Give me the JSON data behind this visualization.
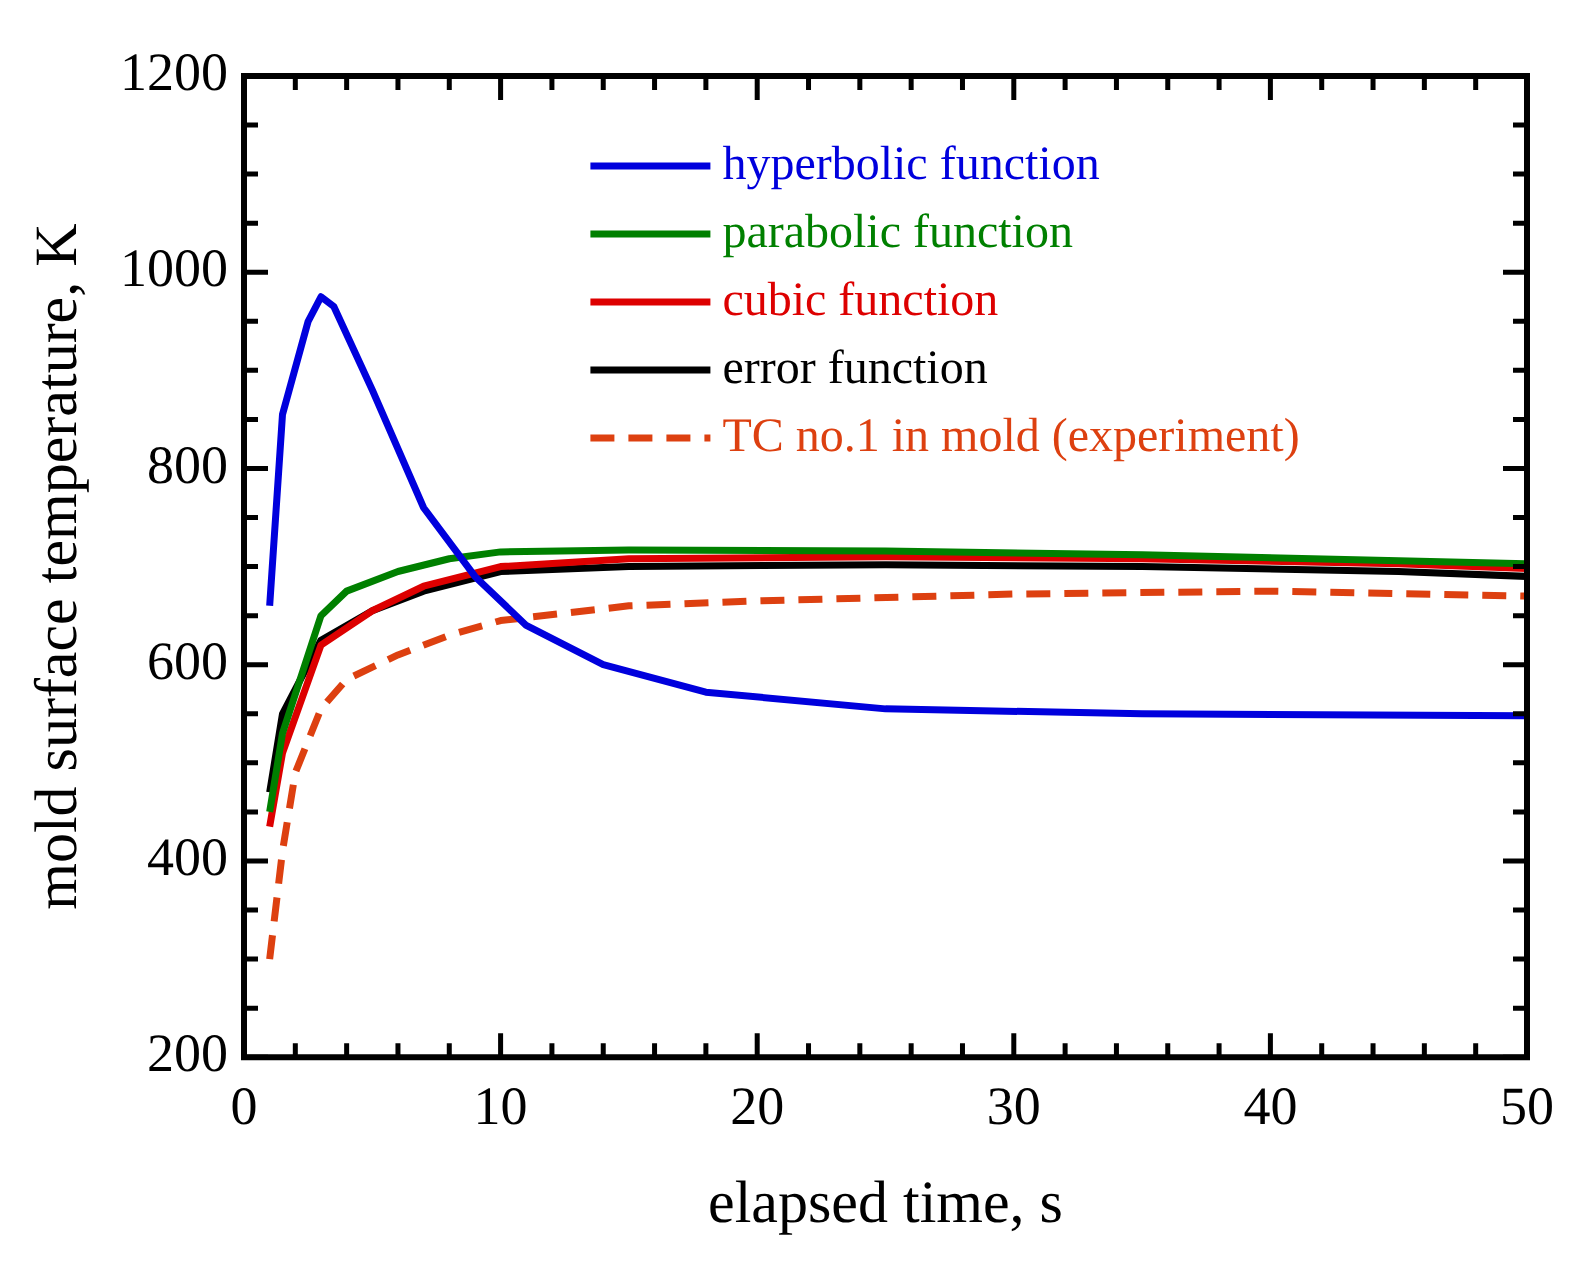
{
  "chart_data": {
    "type": "line",
    "xlabel": "elapsed time, s",
    "ylabel": "mold surface temperature, K",
    "xlim": [
      0,
      50
    ],
    "xticks": [
      0,
      10,
      20,
      30,
      40,
      50
    ],
    "ylim": [
      200,
      1200
    ],
    "yticks": [
      200,
      400,
      600,
      800,
      1000,
      1200
    ],
    "grid": false,
    "legend": "top",
    "marker": "none",
    "series": [
      {
        "name": "hyperbolic function",
        "color": "#0000dd",
        "x": [
          1,
          1.5,
          2.5,
          3,
          3.5,
          5,
          7,
          9,
          11,
          14,
          18,
          25,
          35,
          50
        ],
        "values": [
          660,
          855,
          950,
          975,
          965,
          880,
          760,
          690,
          640,
          600,
          572,
          555,
          550,
          548
        ]
      },
      {
        "name": "parabolic function",
        "color": "#008000",
        "x": [
          1,
          1.5,
          3,
          4,
          6,
          8,
          10,
          15,
          25,
          35,
          45,
          50
        ],
        "values": [
          450,
          530,
          650,
          675,
          695,
          708,
          715,
          717,
          716,
          712,
          706,
          703
        ]
      },
      {
        "name": "cubic function",
        "color": "#dd0000",
        "x": [
          1,
          1.5,
          3,
          5,
          7,
          10,
          15,
          25,
          35,
          45,
          50
        ],
        "values": [
          435,
          510,
          620,
          655,
          680,
          700,
          708,
          710,
          708,
          703,
          698
        ]
      },
      {
        "name": "error function",
        "color": "#000000",
        "x": [
          1,
          1.5,
          3,
          5,
          7,
          10,
          15,
          25,
          35,
          45,
          50
        ],
        "values": [
          470,
          550,
          625,
          655,
          675,
          695,
          700,
          702,
          700,
          695,
          690
        ]
      },
      {
        "name": "TC no.1 in mold (experiment)",
        "color": "#dd4010",
        "line_style": "dashed",
        "x": [
          1,
          1.5,
          2,
          3,
          4,
          6,
          8,
          10,
          15,
          20,
          30,
          40,
          50
        ],
        "values": [
          300,
          410,
          490,
          555,
          585,
          610,
          630,
          645,
          660,
          665,
          672,
          675,
          670
        ]
      }
    ]
  }
}
